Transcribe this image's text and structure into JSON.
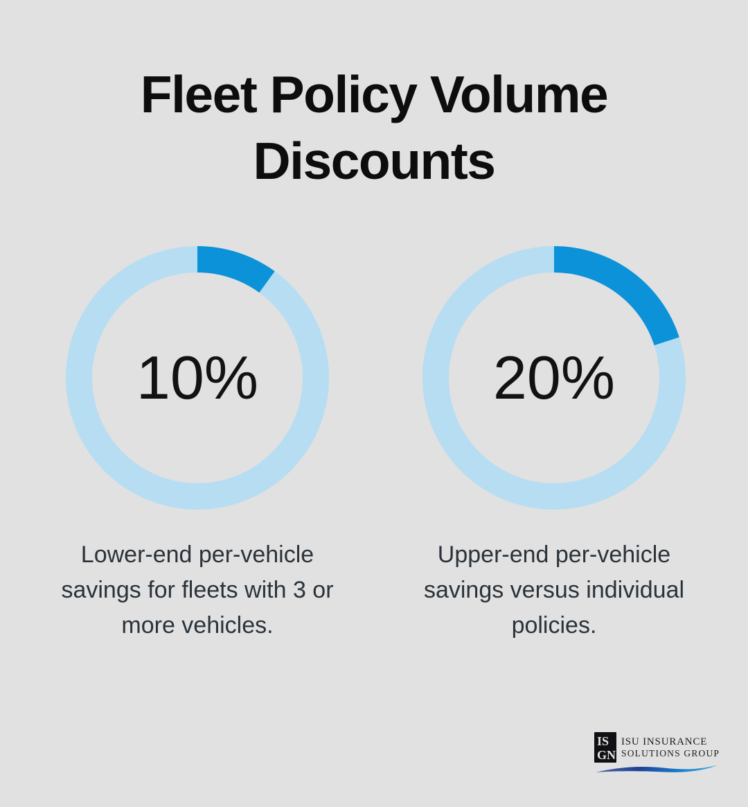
{
  "background_color": "#e0e1e0",
  "title": {
    "line1": "Fleet Policy Volume",
    "line2": "Discounts"
  },
  "chart_data": [
    {
      "type": "pie",
      "variant": "donut",
      "label": "10%",
      "value_percent": 10,
      "start_angle_deg": 0,
      "direction": "clockwise",
      "ring_color": "#b7ddf2",
      "segment_color": "#0c92d8",
      "center_text_color": "#121212",
      "caption_lines": [
        "Lower-end per-vehicle",
        "savings for fleets with 3 or",
        "more vehicles."
      ]
    },
    {
      "type": "pie",
      "variant": "donut",
      "label": "20%",
      "value_percent": 20,
      "start_angle_deg": 0,
      "direction": "clockwise",
      "ring_color": "#b7ddf2",
      "segment_color": "#0c92d8",
      "center_text_color": "#121212",
      "caption_lines": [
        "Upper-end per-vehicle",
        "savings versus individual",
        "policies."
      ]
    }
  ],
  "logo": {
    "monogram_top": "IS",
    "monogram_bottom": "GN",
    "line1": "ISU INSURANCE",
    "line2": "SOLUTIONS GROUP",
    "swoosh_gradient": [
      "#55639f",
      "#1e3f97",
      "#1b7fd0",
      "#45a7e0"
    ]
  }
}
